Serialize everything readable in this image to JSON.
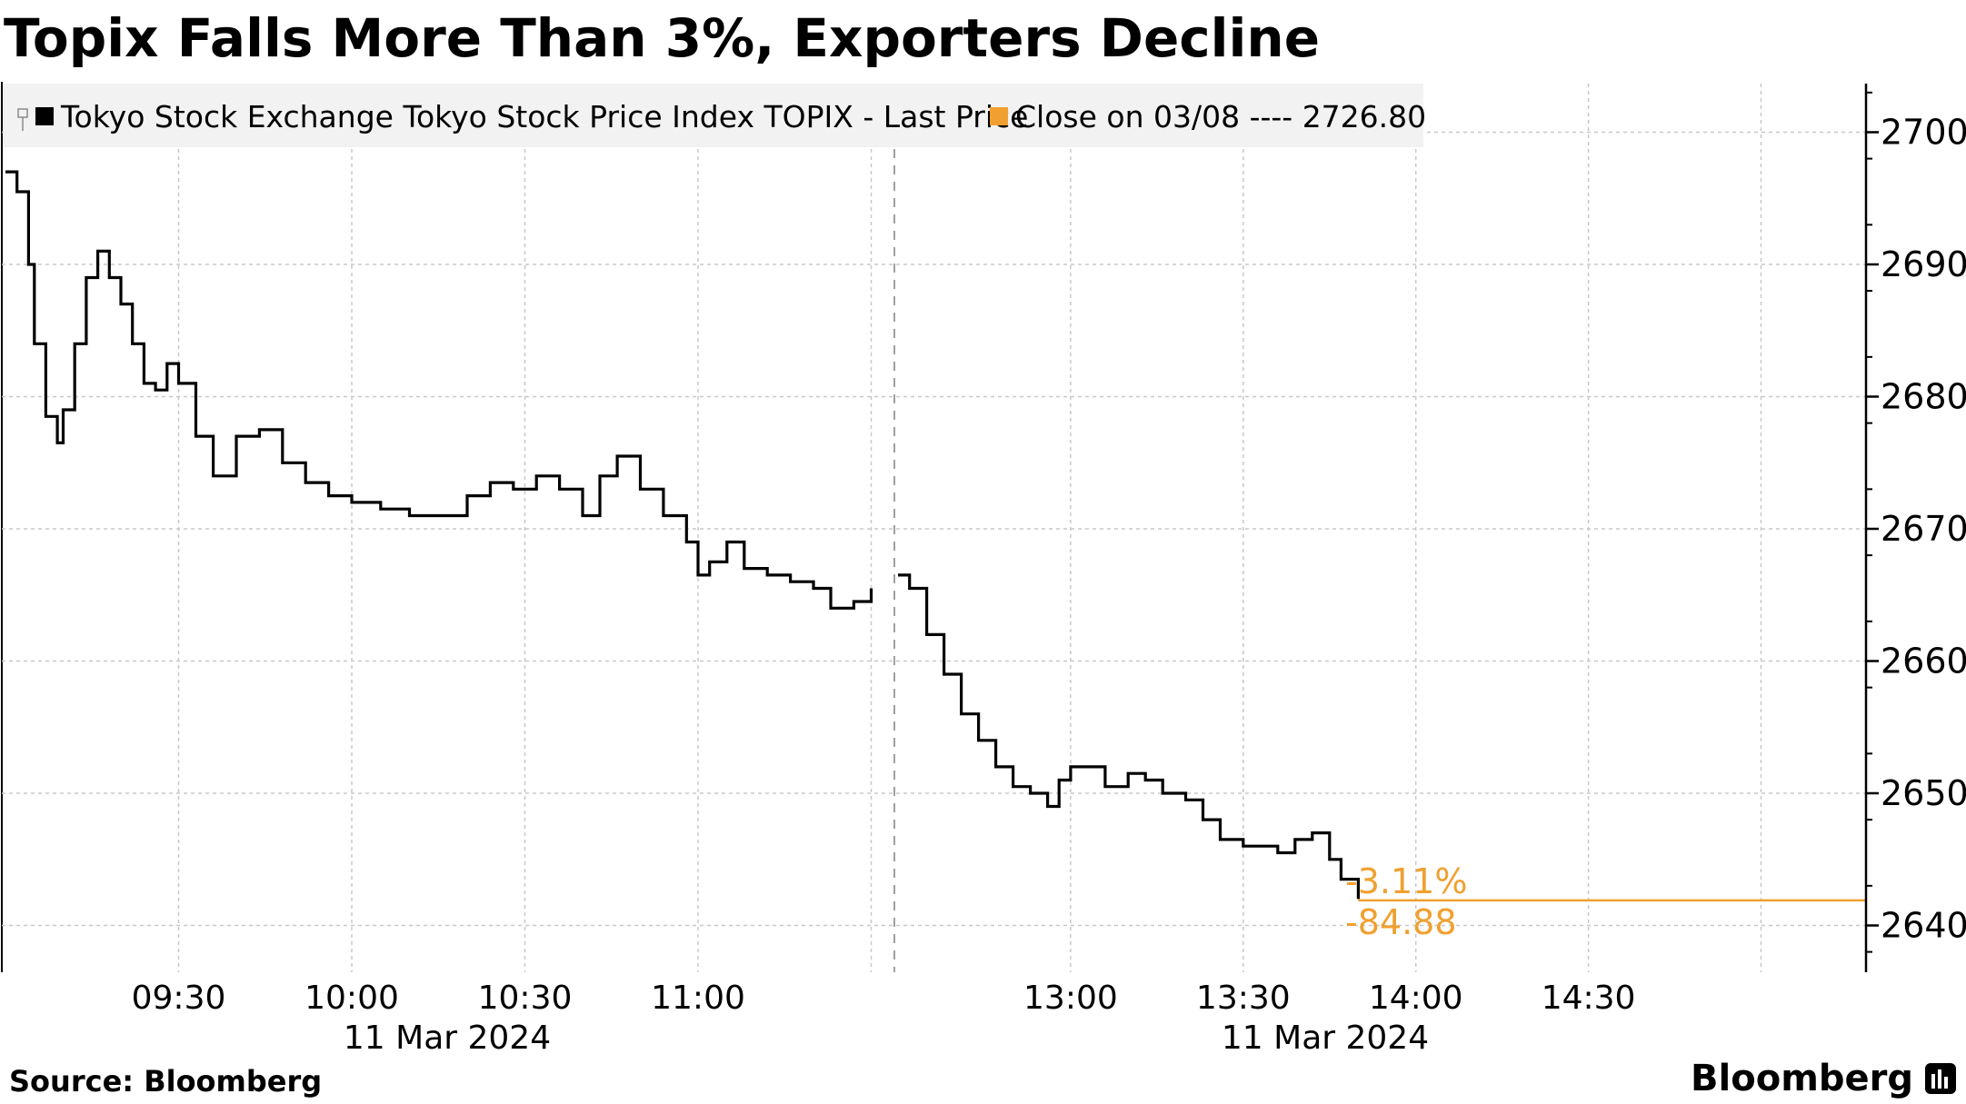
{
  "chart_data": {
    "type": "line",
    "title": "Topix Falls More Than 3%, Exporters Decline",
    "legend": {
      "placement": "top-left",
      "entries": [
        {
          "label": "Tokyo Stock Exchange Tokyo Stock Price Index TOPIX - Last Price",
          "color": "#000000"
        },
        {
          "label": "Close on 03/08 ---- 2726.80",
          "color": "#f0a030"
        }
      ]
    },
    "x_axis": {
      "tick_labels": [
        "09:30",
        "10:00",
        "10:30",
        "11:00",
        "13:00",
        "13:30",
        "14:00",
        "14:30"
      ],
      "date_labels": [
        "11 Mar 2024",
        "11 Mar 2024"
      ]
    },
    "y_axis": {
      "position": "right",
      "ylim": [
        2633,
        2704
      ],
      "ticks": [
        2640,
        2650,
        2660,
        2670,
        2680,
        2690,
        2700
      ],
      "tick_labels": [
        "2700",
        "2690",
        "2680",
        "2670",
        "2660",
        "2650",
        "2640"
      ]
    },
    "grid": true,
    "reference_line": {
      "value": 2641.9,
      "color": "#f0a030"
    },
    "annotations": [
      {
        "text": "-3.11%",
        "color": "#f0a030"
      },
      {
        "text": "-84.88",
        "color": "#f0a030"
      }
    ],
    "series": [
      {
        "name": "Tokyo Stock Exchange Tokyo Stock Price Index TOPIX - Last Price",
        "color": "#000000",
        "segments": [
          {
            "session": "morning",
            "x": [
              "09:00",
              "09:02",
              "09:04",
              "09:05",
              "09:07",
              "09:09",
              "09:10",
              "09:12",
              "09:14",
              "09:16",
              "09:18",
              "09:20",
              "09:22",
              "09:24",
              "09:26",
              "09:28",
              "09:30",
              "09:33",
              "09:36",
              "09:40",
              "09:44",
              "09:48",
              "09:52",
              "09:56",
              "10:00",
              "10:05",
              "10:10",
              "10:15",
              "10:20",
              "10:24",
              "10:28",
              "10:32",
              "10:36",
              "10:40",
              "10:43",
              "10:46",
              "10:50",
              "10:54",
              "10:58",
              "11:00",
              "11:02",
              "11:05",
              "11:08",
              "11:12",
              "11:16",
              "11:20",
              "11:23",
              "11:27",
              "11:30"
            ],
            "y": [
              2697.0,
              2695.5,
              2690.0,
              2684.0,
              2678.5,
              2676.5,
              2679.0,
              2684.0,
              2689.0,
              2691.0,
              2689.0,
              2687.0,
              2684.0,
              2681.0,
              2680.5,
              2682.5,
              2681.0,
              2677.0,
              2674.0,
              2677.0,
              2677.5,
              2675.0,
              2673.5,
              2672.5,
              2672.0,
              2671.5,
              2671.0,
              2671.0,
              2672.5,
              2673.5,
              2673.0,
              2674.0,
              2673.0,
              2671.0,
              2674.0,
              2675.5,
              2673.0,
              2671.0,
              2669.0,
              2666.5,
              2667.5,
              2669.0,
              2667.0,
              2666.5,
              2666.0,
              2665.5,
              2664.0,
              2664.5,
              2665.5
            ]
          },
          {
            "session": "afternoon",
            "x": [
              "12:30",
              "12:32",
              "12:35",
              "12:38",
              "12:41",
              "12:44",
              "12:47",
              "12:50",
              "12:53",
              "12:56",
              "12:58",
              "13:00",
              "13:03",
              "13:06",
              "13:10",
              "13:13",
              "13:16",
              "13:20",
              "13:23",
              "13:26",
              "13:30",
              "13:33",
              "13:36",
              "13:39",
              "13:42",
              "13:45",
              "13:47",
              "13:50"
            ],
            "y": [
              2666.5,
              2665.5,
              2662.0,
              2659.0,
              2656.0,
              2654.0,
              2652.0,
              2650.5,
              2650.0,
              2649.0,
              2651.0,
              2652.0,
              2652.0,
              2650.5,
              2651.5,
              2651.0,
              2650.0,
              2649.5,
              2648.0,
              2646.5,
              2646.0,
              2646.0,
              2645.5,
              2646.5,
              2647.0,
              2645.0,
              2643.5,
              2642.0
            ]
          }
        ]
      }
    ]
  },
  "source": "Source: Bloomberg",
  "brand": "Bloomberg"
}
